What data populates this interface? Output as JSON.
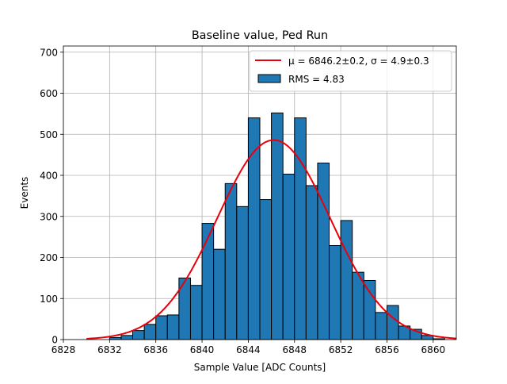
{
  "chart_data": {
    "type": "bar",
    "title": "Baseline value, Ped Run",
    "xlabel": "Sample Value [ADC Counts]",
    "ylabel": "Events",
    "xlim": [
      6828,
      6862
    ],
    "ylim": [
      0,
      715
    ],
    "xticks": [
      6828,
      6832,
      6836,
      6840,
      6844,
      6848,
      6852,
      6856,
      6860
    ],
    "yticks": [
      0,
      100,
      200,
      300,
      400,
      500,
      600,
      700
    ],
    "grid": true,
    "legend_position": "top-right",
    "histogram": {
      "label": "RMS = 4.83",
      "color": "#1f77b4",
      "edge_color": "#000000",
      "bin_start": 6830,
      "bin_width": 1,
      "counts": [
        0,
        0,
        5,
        10,
        22,
        37,
        58,
        60,
        150,
        132,
        283,
        220,
        380,
        324,
        540,
        341,
        552,
        403,
        540,
        375,
        430,
        229,
        290,
        164,
        144,
        66,
        83,
        33,
        25,
        10,
        2,
        0
      ]
    },
    "fit": {
      "label": "$\\mu = 6846.2 \\pm 0.2$, $\\sigma = 4.9 \\pm 0.3$",
      "label_text": "μ = 6846.2±0.2, σ = 4.9±0.3",
      "color": "#e8000b",
      "type": "gaussian",
      "mu": 6846.2,
      "sigma": 4.9,
      "amplitude": 486,
      "x_range": [
        6830,
        6862
      ]
    }
  }
}
